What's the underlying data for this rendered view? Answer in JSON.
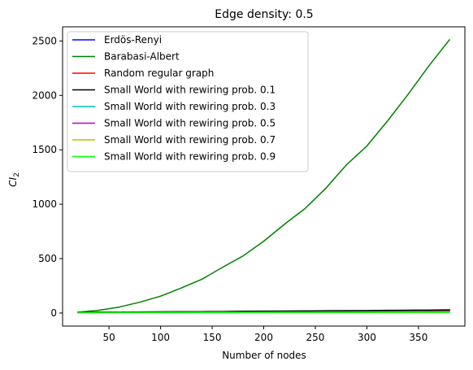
{
  "chart_data": {
    "type": "line",
    "title": "Edge density: 0.5",
    "xlabel": "Number of nodes",
    "ylabel": "CI",
    "ylabel_subscript": "2",
    "xlim": [
      5,
      395
    ],
    "ylim": [
      -120,
      2630
    ],
    "xticks": [
      50,
      100,
      150,
      200,
      250,
      300,
      350
    ],
    "yticks": [
      0,
      500,
      1000,
      1500,
      2000,
      2500
    ],
    "grid": false,
    "legend_position": "top-left",
    "x": [
      20,
      40,
      60,
      80,
      100,
      120,
      140,
      160,
      180,
      200,
      220,
      240,
      260,
      280,
      300,
      320,
      340,
      360,
      380
    ],
    "series": [
      {
        "name": "Erdös-Renyi",
        "color": "#0000ff",
        "values": [
          6,
          7,
          8,
          9,
          10,
          11,
          12,
          13,
          14,
          15,
          16,
          17,
          18,
          19,
          20,
          21,
          22,
          23,
          24
        ]
      },
      {
        "name": "Barabasi-Albert",
        "color": "#008000",
        "values": [
          8,
          25,
          55,
          100,
          155,
          230,
          310,
          420,
          525,
          660,
          815,
          960,
          1145,
          1360,
          1535,
          1765,
          2010,
          2270,
          2510
        ]
      },
      {
        "name": "Random regular graph",
        "color": "#ff0000",
        "values": [
          6,
          7,
          8,
          9,
          10,
          11,
          12,
          13,
          14,
          15,
          16,
          17,
          18,
          19,
          20,
          21,
          22,
          23,
          24
        ]
      },
      {
        "name": "Small World with rewiring prob. 0.1",
        "color": "#000000",
        "values": [
          7,
          8,
          9,
          10,
          11,
          12,
          13,
          14,
          16,
          17,
          18,
          19,
          21,
          22,
          23,
          25,
          26,
          27,
          29
        ]
      },
      {
        "name": "Small World with rewiring prob. 0.3",
        "color": "#00bfbf",
        "values": [
          5,
          5,
          6,
          6,
          7,
          7,
          8,
          8,
          9,
          9,
          10,
          10,
          11,
          11,
          12,
          12,
          13,
          13,
          14
        ]
      },
      {
        "name": "Small World with rewiring prob. 0.5",
        "color": "#bf00bf",
        "values": [
          4,
          4,
          5,
          5,
          5,
          6,
          6,
          6,
          7,
          7,
          7,
          8,
          8,
          8,
          9,
          9,
          9,
          10,
          10
        ]
      },
      {
        "name": "Small World with rewiring prob. 0.7",
        "color": "#bfbf00",
        "values": [
          3,
          3,
          4,
          4,
          4,
          4,
          5,
          5,
          5,
          5,
          6,
          6,
          6,
          6,
          7,
          7,
          7,
          7,
          8
        ]
      },
      {
        "name": "Small World with rewiring prob. 0.9",
        "color": "#00ff00",
        "values": [
          2,
          3,
          3,
          3,
          3,
          4,
          4,
          4,
          4,
          4,
          5,
          5,
          5,
          5,
          5,
          6,
          6,
          6,
          6
        ]
      }
    ]
  }
}
